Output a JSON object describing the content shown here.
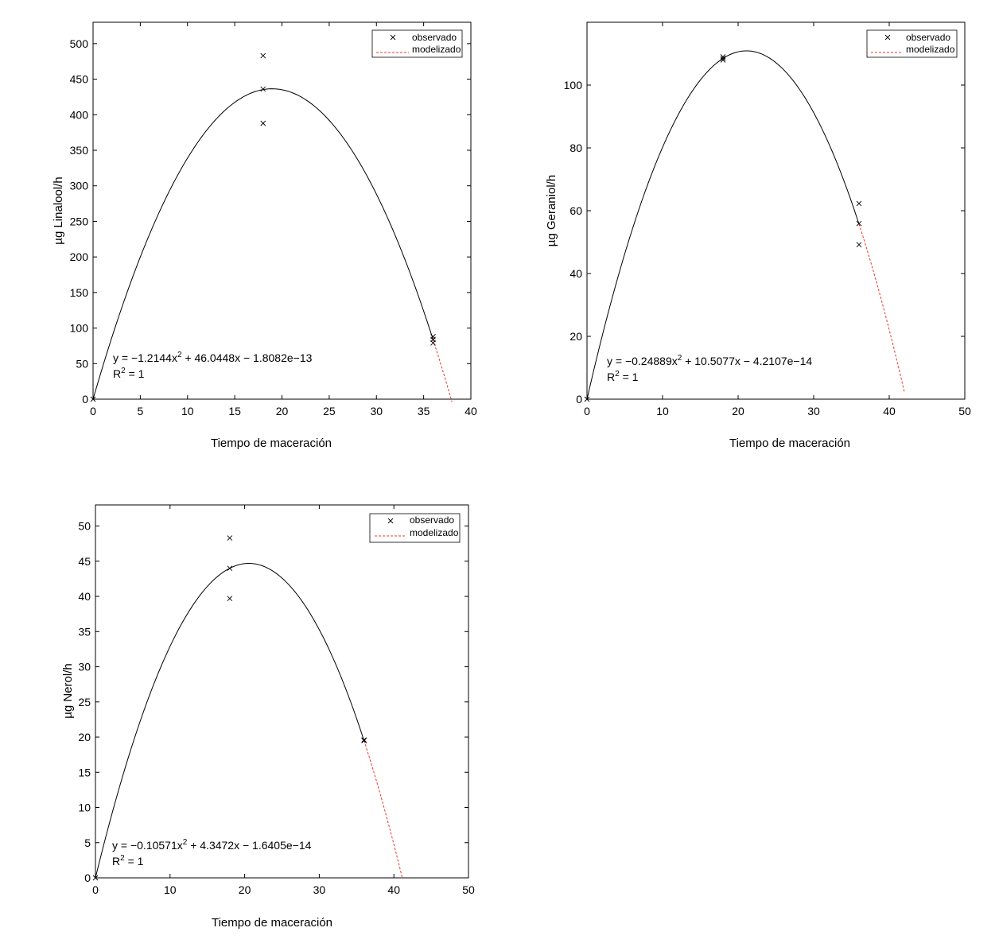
{
  "colors": {
    "observed": "#000000",
    "fit": "#000000",
    "modeled": "#e8392f"
  },
  "chart_data": [
    {
      "type": "scatter",
      "xlabel": "Tiempo de maceración",
      "ylabel": "µg Linalool/h",
      "xlim": [
        0,
        40
      ],
      "ylim": [
        0,
        530
      ],
      "xticks": [
        0,
        5,
        10,
        15,
        20,
        25,
        30,
        35,
        40
      ],
      "yticks": [
        0,
        50,
        100,
        150,
        200,
        250,
        300,
        350,
        400,
        450,
        500
      ],
      "legend": {
        "placement": "top-right",
        "entries": [
          "observado",
          "modelizado"
        ]
      },
      "observed": {
        "x": [
          0,
          18,
          18,
          18,
          36,
          36,
          36
        ],
        "y": [
          0,
          483,
          436,
          388,
          88,
          84,
          79
        ]
      },
      "fit_coefficients": [
        -1.2144,
        46.0448,
        -1.8082e-13
      ],
      "fit_range": [
        0,
        36
      ],
      "modeled_range": [
        36,
        38
      ],
      "equation": {
        "y_prefix": "y = −1.2144x",
        "exp": "2",
        "y_suffix": " + 46.0448x − 1.8082e−13",
        "r2_prefix": "R",
        "r2_suffix": " = 1"
      }
    },
    {
      "type": "scatter",
      "xlabel": "Tiempo de maceración",
      "ylabel": "µg Geraniol/h",
      "xlim": [
        0,
        50
      ],
      "ylim": [
        0,
        120
      ],
      "xticks": [
        0,
        10,
        20,
        30,
        40,
        50
      ],
      "yticks": [
        0,
        20,
        40,
        60,
        80,
        100
      ],
      "legend": {
        "placement": "top-right",
        "entries": [
          "observado",
          "modelizado"
        ]
      },
      "observed": {
        "x": [
          0,
          18,
          18,
          18,
          36,
          36,
          36
        ],
        "y": [
          0,
          109,
          108.5,
          108,
          62.3,
          55.9,
          49.2
        ]
      },
      "fit_coefficients": [
        -0.24889,
        10.5077,
        -4.2107e-14
      ],
      "fit_range": [
        0,
        36
      ],
      "modeled_range": [
        36,
        42
      ],
      "equation": {
        "y_prefix": "y = −0.24889x",
        "exp": "2",
        "y_suffix": " + 10.5077x − 4.2107e−14",
        "r2_prefix": "R",
        "r2_suffix": " = 1"
      }
    },
    {
      "type": "scatter",
      "xlabel": "Tiempo de maceración",
      "ylabel": "µg Nerol/h",
      "xlim": [
        0,
        50
      ],
      "ylim": [
        0,
        53
      ],
      "xticks": [
        0,
        10,
        20,
        30,
        40,
        50
      ],
      "yticks": [
        0,
        5,
        10,
        15,
        20,
        25,
        30,
        35,
        40,
        45,
        50
      ],
      "legend": {
        "placement": "top-right",
        "entries": [
          "observado",
          "modelizado"
        ]
      },
      "observed": {
        "x": [
          0,
          18,
          18,
          18,
          36,
          36
        ],
        "y": [
          0,
          48.3,
          44,
          39.7,
          19.6,
          19.5
        ]
      },
      "fit_coefficients": [
        -0.10571,
        4.3472,
        -1.6405e-14
      ],
      "fit_range": [
        0,
        36
      ],
      "modeled_range": [
        36,
        41.1
      ],
      "equation": {
        "y_prefix": "y = −0.10571x",
        "exp": "2",
        "y_suffix": " + 4.3472x − 1.6405e−14",
        "r2_prefix": "R",
        "r2_suffix": " = 1"
      }
    }
  ]
}
